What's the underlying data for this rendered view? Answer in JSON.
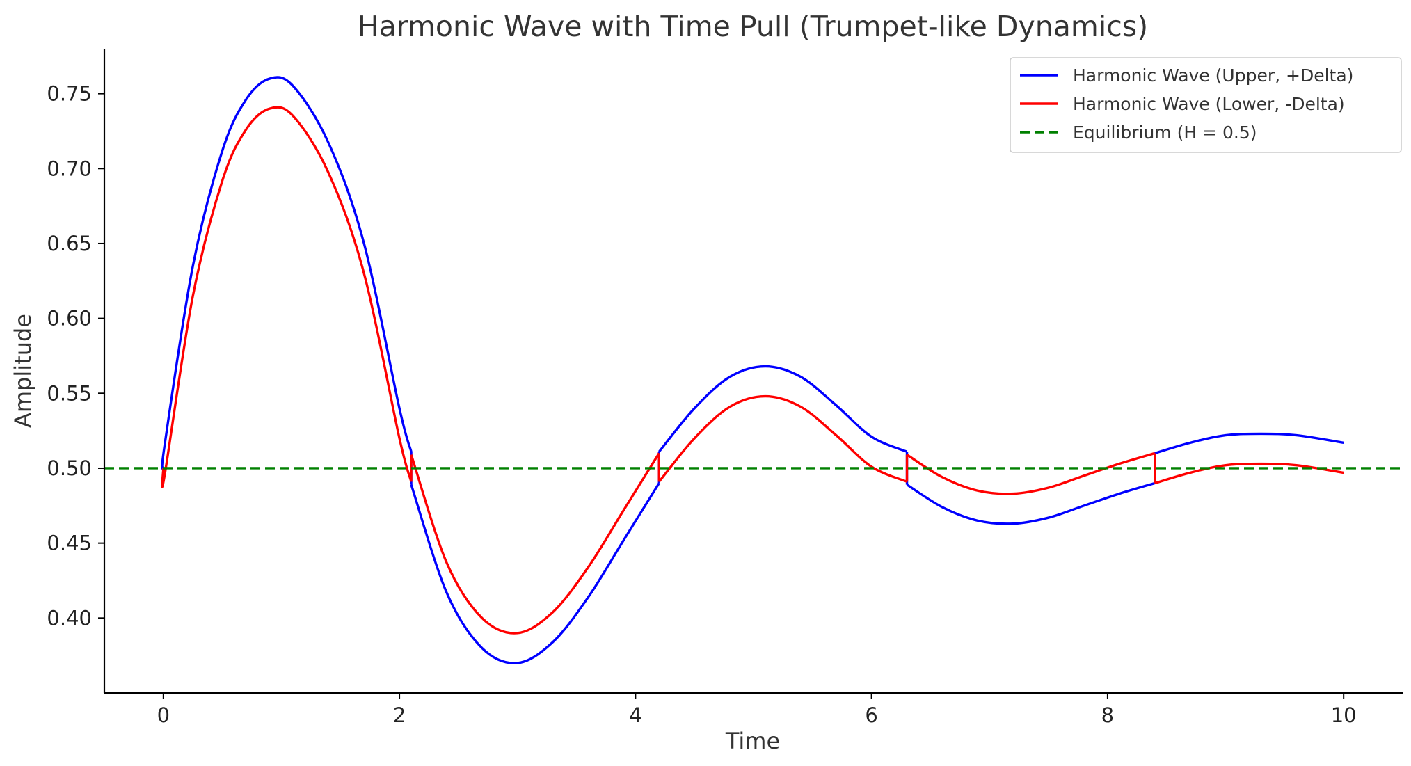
{
  "chart_data": {
    "type": "line",
    "title": "Harmonic Wave with Time Pull (Trumpet-like Dynamics)",
    "xlabel": "Time",
    "ylabel": "Amplitude",
    "xlim": [
      -0.5,
      10.5
    ],
    "ylim": [
      0.35,
      0.78
    ],
    "x_ticks": [
      0,
      2,
      4,
      6,
      8,
      10
    ],
    "x_tick_labels": [
      "0",
      "2",
      "4",
      "6",
      "8",
      "10"
    ],
    "y_ticks": [
      0.4,
      0.45,
      0.5,
      0.55,
      0.6,
      0.65,
      0.7,
      0.75
    ],
    "y_tick_labels": [
      "0.40",
      "0.45",
      "0.50",
      "0.55",
      "0.60",
      "0.65",
      "0.70",
      "0.75"
    ],
    "grid": false,
    "legend_position": "top-right",
    "series": [
      {
        "name": "Harmonic Wave (Upper, +Delta)",
        "color": "#0000ff",
        "style": "solid",
        "x": [
          0,
          0.01,
          0.25,
          0.5,
          0.7,
          0.9,
          1.1,
          1.4,
          1.7,
          2.0,
          2.1,
          2.1,
          2.4,
          2.7,
          3.0,
          3.3,
          3.6,
          3.9,
          4.2,
          4.2,
          4.5,
          4.8,
          5.1,
          5.4,
          5.7,
          6.0,
          6.3,
          6.3,
          6.6,
          6.9,
          7.2,
          7.5,
          7.8,
          8.1,
          8.4,
          8.4,
          8.7,
          9.0,
          9.3,
          9.6,
          10.0
        ],
        "y": [
          0.5,
          0.515,
          0.635,
          0.712,
          0.746,
          0.76,
          0.755,
          0.717,
          0.65,
          0.54,
          0.511,
          0.489,
          0.417,
          0.38,
          0.37,
          0.384,
          0.414,
          0.452,
          0.49,
          0.511,
          0.54,
          0.561,
          0.568,
          0.561,
          0.542,
          0.521,
          0.511,
          0.489,
          0.474,
          0.465,
          0.463,
          0.467,
          0.475,
          0.483,
          0.49,
          0.51,
          0.517,
          0.522,
          0.523,
          0.522,
          0.517
        ]
      },
      {
        "name": "Harmonic Wave (Lower, -Delta)",
        "color": "#ff0000",
        "style": "solid",
        "x": [
          0,
          0.01,
          0.25,
          0.5,
          0.7,
          0.9,
          1.1,
          1.4,
          1.7,
          2.0,
          2.1,
          2.1,
          2.4,
          2.7,
          3.0,
          3.3,
          3.6,
          3.9,
          4.2,
          4.2,
          4.5,
          4.8,
          5.1,
          5.4,
          5.7,
          6.0,
          6.3,
          6.3,
          6.6,
          6.9,
          7.2,
          7.5,
          7.8,
          8.1,
          8.4,
          8.4,
          8.7,
          9.0,
          9.3,
          9.6,
          10.0
        ],
        "y": [
          0.5,
          0.495,
          0.615,
          0.692,
          0.726,
          0.74,
          0.735,
          0.697,
          0.63,
          0.52,
          0.491,
          0.509,
          0.437,
          0.4,
          0.39,
          0.404,
          0.434,
          0.472,
          0.51,
          0.491,
          0.52,
          0.541,
          0.548,
          0.541,
          0.522,
          0.501,
          0.491,
          0.509,
          0.494,
          0.485,
          0.483,
          0.487,
          0.495,
          0.503,
          0.51,
          0.49,
          0.497,
          0.502,
          0.503,
          0.502,
          0.497
        ]
      },
      {
        "name": "Equilibrium (H = 0.5)",
        "color": "#008000",
        "style": "dashed",
        "x": [
          -0.5,
          10.5
        ],
        "y": [
          0.5,
          0.5
        ]
      }
    ]
  }
}
